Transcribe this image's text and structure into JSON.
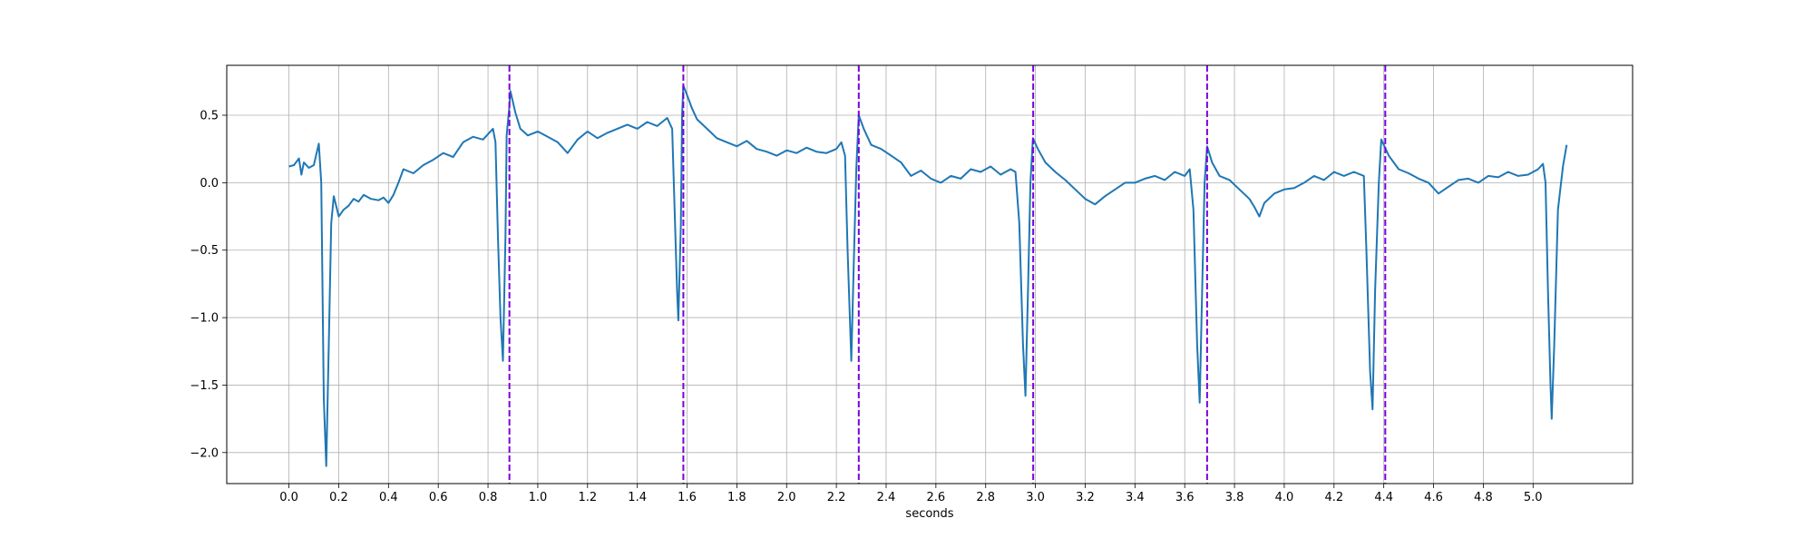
{
  "chart_data": {
    "type": "line",
    "title": "",
    "xlabel": "seconds",
    "ylabel": "",
    "xlim": [
      -0.25,
      5.4
    ],
    "ylim": [
      -2.23,
      0.87
    ],
    "grid": true,
    "xticks": [
      0.0,
      0.2,
      0.4,
      0.6,
      0.8,
      1.0,
      1.2,
      1.4,
      1.6,
      1.8,
      2.0,
      2.2,
      2.4,
      2.6,
      2.8,
      3.0,
      3.2,
      3.4,
      3.6,
      3.8,
      4.0,
      4.2,
      4.4,
      4.6,
      4.8,
      5.0
    ],
    "xtick_labels": [
      "0.0",
      "0.2",
      "0.4",
      "0.6",
      "0.8",
      "1.0",
      "1.2",
      "1.4",
      "1.6",
      "1.8",
      "2.0",
      "2.2",
      "2.4",
      "2.6",
      "2.8",
      "3.0",
      "3.2",
      "3.4",
      "3.6",
      "3.8",
      "4.0",
      "4.2",
      "4.4",
      "4.6",
      "4.8",
      "5.0"
    ],
    "yticks": [
      0.5,
      0.0,
      -0.5,
      -1.0,
      -1.5,
      -2.0
    ],
    "ytick_labels": [
      "0.5",
      "0.0",
      "−0.5",
      "−1.0",
      "−1.5",
      "−2.0"
    ],
    "series": [
      {
        "color": "#1f77b4",
        "points": [
          [
            0.0,
            0.12
          ],
          [
            0.02,
            0.13
          ],
          [
            0.04,
            0.18
          ],
          [
            0.05,
            0.06
          ],
          [
            0.06,
            0.15
          ],
          [
            0.08,
            0.11
          ],
          [
            0.1,
            0.13
          ],
          [
            0.12,
            0.29
          ],
          [
            0.13,
            0.0
          ],
          [
            0.14,
            -1.6
          ],
          [
            0.15,
            -2.1
          ],
          [
            0.16,
            -1.2
          ],
          [
            0.17,
            -0.3
          ],
          [
            0.18,
            -0.1
          ],
          [
            0.2,
            -0.25
          ],
          [
            0.22,
            -0.2
          ],
          [
            0.24,
            -0.17
          ],
          [
            0.26,
            -0.12
          ],
          [
            0.28,
            -0.14
          ],
          [
            0.3,
            -0.09
          ],
          [
            0.33,
            -0.12
          ],
          [
            0.36,
            -0.13
          ],
          [
            0.38,
            -0.11
          ],
          [
            0.4,
            -0.15
          ],
          [
            0.42,
            -0.09
          ],
          [
            0.44,
            0.0
          ],
          [
            0.46,
            0.1
          ],
          [
            0.5,
            0.07
          ],
          [
            0.54,
            0.13
          ],
          [
            0.58,
            0.17
          ],
          [
            0.62,
            0.22
          ],
          [
            0.66,
            0.19
          ],
          [
            0.7,
            0.3
          ],
          [
            0.74,
            0.34
          ],
          [
            0.78,
            0.32
          ],
          [
            0.8,
            0.36
          ],
          [
            0.82,
            0.4
          ],
          [
            0.83,
            0.3
          ],
          [
            0.84,
            -0.4
          ],
          [
            0.85,
            -1.0
          ],
          [
            0.86,
            -1.32
          ],
          [
            0.87,
            -0.4
          ],
          [
            0.875,
            0.35
          ],
          [
            0.885,
            0.55
          ],
          [
            0.89,
            0.68
          ],
          [
            0.91,
            0.52
          ],
          [
            0.93,
            0.4
          ],
          [
            0.96,
            0.35
          ],
          [
            1.0,
            0.38
          ],
          [
            1.04,
            0.34
          ],
          [
            1.08,
            0.3
          ],
          [
            1.12,
            0.22
          ],
          [
            1.16,
            0.32
          ],
          [
            1.2,
            0.38
          ],
          [
            1.24,
            0.33
          ],
          [
            1.28,
            0.37
          ],
          [
            1.32,
            0.4
          ],
          [
            1.36,
            0.43
          ],
          [
            1.4,
            0.4
          ],
          [
            1.44,
            0.45
          ],
          [
            1.48,
            0.42
          ],
          [
            1.52,
            0.48
          ],
          [
            1.54,
            0.4
          ],
          [
            1.55,
            -0.2
          ],
          [
            1.56,
            -0.8
          ],
          [
            1.565,
            -1.02
          ],
          [
            1.575,
            -0.3
          ],
          [
            1.58,
            0.5
          ],
          [
            1.585,
            0.72
          ],
          [
            1.6,
            0.65
          ],
          [
            1.62,
            0.55
          ],
          [
            1.64,
            0.47
          ],
          [
            1.68,
            0.4
          ],
          [
            1.72,
            0.33
          ],
          [
            1.76,
            0.3
          ],
          [
            1.8,
            0.27
          ],
          [
            1.84,
            0.31
          ],
          [
            1.88,
            0.25
          ],
          [
            1.92,
            0.23
          ],
          [
            1.96,
            0.2
          ],
          [
            2.0,
            0.24
          ],
          [
            2.04,
            0.22
          ],
          [
            2.08,
            0.26
          ],
          [
            2.12,
            0.23
          ],
          [
            2.16,
            0.22
          ],
          [
            2.2,
            0.25
          ],
          [
            2.22,
            0.3
          ],
          [
            2.235,
            0.2
          ],
          [
            2.245,
            -0.5
          ],
          [
            2.26,
            -1.32
          ],
          [
            2.27,
            -0.6
          ],
          [
            2.28,
            0.1
          ],
          [
            2.29,
            0.5
          ],
          [
            2.31,
            0.4
          ],
          [
            2.34,
            0.28
          ],
          [
            2.38,
            0.25
          ],
          [
            2.42,
            0.2
          ],
          [
            2.46,
            0.15
          ],
          [
            2.5,
            0.05
          ],
          [
            2.54,
            0.09
          ],
          [
            2.58,
            0.03
          ],
          [
            2.62,
            0.0
          ],
          [
            2.66,
            0.05
          ],
          [
            2.7,
            0.03
          ],
          [
            2.74,
            0.1
          ],
          [
            2.78,
            0.08
          ],
          [
            2.82,
            0.12
          ],
          [
            2.86,
            0.06
          ],
          [
            2.9,
            0.1
          ],
          [
            2.92,
            0.08
          ],
          [
            2.935,
            -0.3
          ],
          [
            2.95,
            -1.2
          ],
          [
            2.96,
            -1.58
          ],
          [
            2.97,
            -0.8
          ],
          [
            2.98,
            0.0
          ],
          [
            2.99,
            0.33
          ],
          [
            3.01,
            0.25
          ],
          [
            3.04,
            0.15
          ],
          [
            3.08,
            0.08
          ],
          [
            3.12,
            0.02
          ],
          [
            3.16,
            -0.05
          ],
          [
            3.2,
            -0.12
          ],
          [
            3.24,
            -0.16
          ],
          [
            3.28,
            -0.1
          ],
          [
            3.32,
            -0.05
          ],
          [
            3.36,
            0.0
          ],
          [
            3.4,
            0.0
          ],
          [
            3.44,
            0.03
          ],
          [
            3.48,
            0.05
          ],
          [
            3.52,
            0.02
          ],
          [
            3.56,
            0.08
          ],
          [
            3.6,
            0.05
          ],
          [
            3.62,
            0.1
          ],
          [
            3.635,
            -0.2
          ],
          [
            3.65,
            -1.2
          ],
          [
            3.66,
            -1.63
          ],
          [
            3.67,
            -0.8
          ],
          [
            3.68,
            0.0
          ],
          [
            3.69,
            0.27
          ],
          [
            3.71,
            0.15
          ],
          [
            3.74,
            0.05
          ],
          [
            3.78,
            0.02
          ],
          [
            3.82,
            -0.05
          ],
          [
            3.86,
            -0.12
          ],
          [
            3.88,
            -0.18
          ],
          [
            3.9,
            -0.25
          ],
          [
            3.92,
            -0.15
          ],
          [
            3.96,
            -0.08
          ],
          [
            4.0,
            -0.05
          ],
          [
            4.04,
            -0.04
          ],
          [
            4.08,
            0.0
          ],
          [
            4.12,
            0.05
          ],
          [
            4.16,
            0.02
          ],
          [
            4.2,
            0.08
          ],
          [
            4.24,
            0.05
          ],
          [
            4.28,
            0.08
          ],
          [
            4.32,
            0.05
          ],
          [
            4.33,
            -0.5
          ],
          [
            4.345,
            -1.4
          ],
          [
            4.355,
            -1.68
          ],
          [
            4.365,
            -0.8
          ],
          [
            4.38,
            0.0
          ],
          [
            4.39,
            0.32
          ],
          [
            4.42,
            0.2
          ],
          [
            4.46,
            0.1
          ],
          [
            4.5,
            0.07
          ],
          [
            4.54,
            0.03
          ],
          [
            4.58,
            0.0
          ],
          [
            4.62,
            -0.08
          ],
          [
            4.66,
            -0.03
          ],
          [
            4.7,
            0.02
          ],
          [
            4.74,
            0.03
          ],
          [
            4.78,
            0.0
          ],
          [
            4.82,
            0.05
          ],
          [
            4.86,
            0.04
          ],
          [
            4.9,
            0.08
          ],
          [
            4.94,
            0.05
          ],
          [
            4.98,
            0.06
          ],
          [
            5.02,
            0.1
          ],
          [
            5.04,
            0.14
          ],
          [
            5.05,
            0.0
          ],
          [
            5.06,
            -0.8
          ],
          [
            5.07,
            -1.5
          ],
          [
            5.075,
            -1.75
          ],
          [
            5.085,
            -1.2
          ],
          [
            5.1,
            -0.2
          ],
          [
            5.12,
            0.12
          ],
          [
            5.135,
            0.28
          ]
        ]
      }
    ],
    "vlines": {
      "x": [
        0.886,
        1.585,
        2.29,
        2.991,
        3.69,
        4.406
      ],
      "color": "#7b00e0",
      "style": "dashed"
    }
  }
}
